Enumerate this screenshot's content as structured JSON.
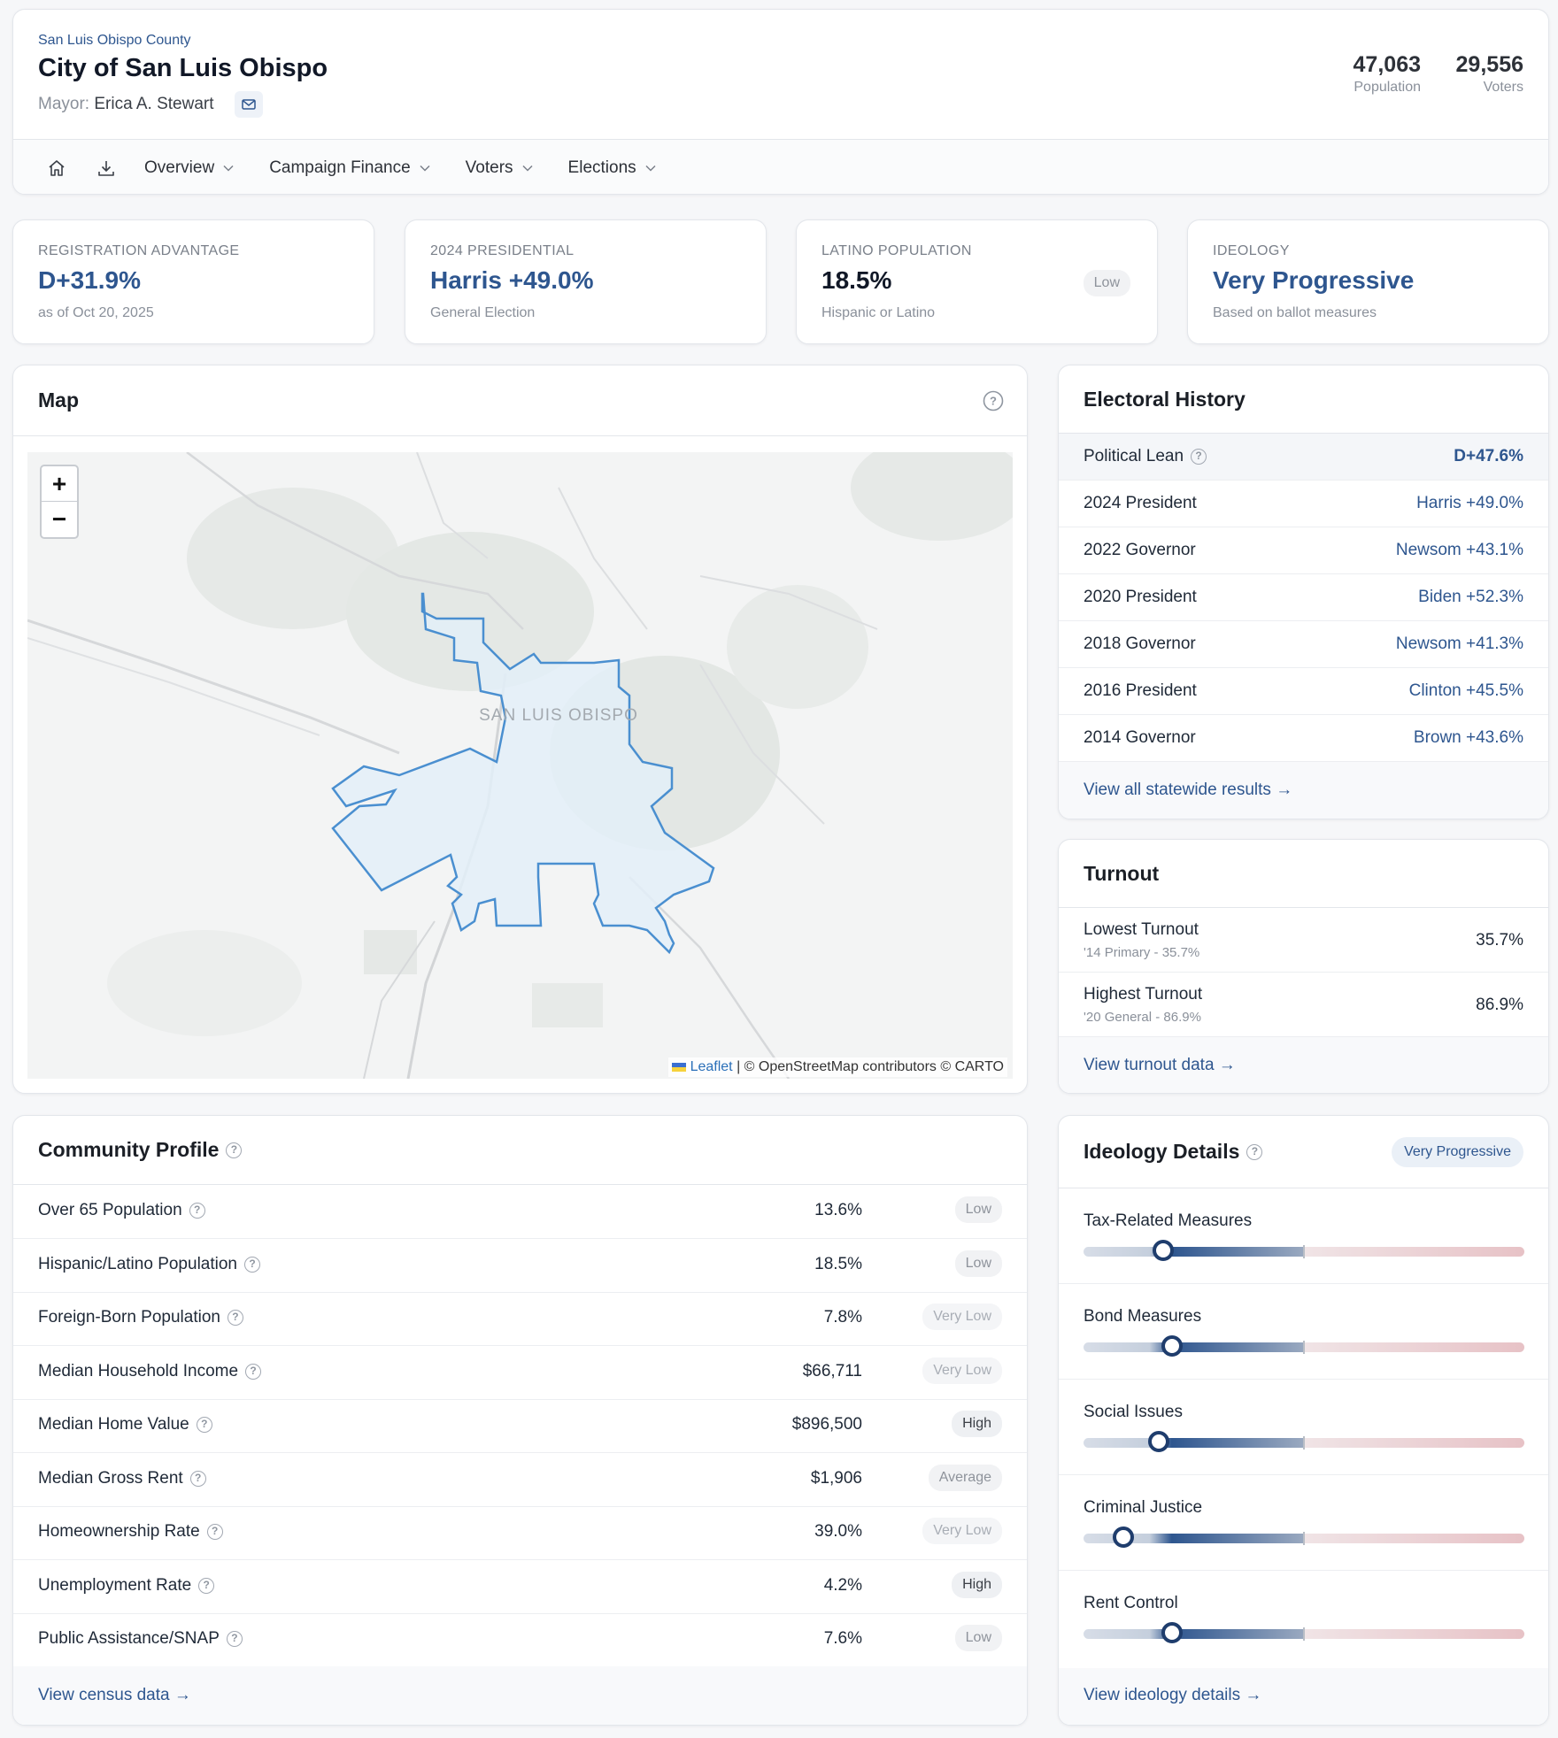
{
  "header": {
    "county": "San Luis Obispo County",
    "city_title": "City of San Luis Obispo",
    "mayor_label": "Mayor:",
    "mayor_name": "Erica A. Stewart",
    "population": "47,063",
    "population_label": "Population",
    "voters": "29,556",
    "voters_label": "Voters"
  },
  "nav": {
    "items": [
      "Overview",
      "Campaign Finance",
      "Voters",
      "Elections"
    ]
  },
  "stats": [
    {
      "label": "REGISTRATION ADVANTAGE",
      "value": "D+31.9%",
      "sub": "as of Oct 20, 2025"
    },
    {
      "label": "2024 PRESIDENTIAL",
      "value": "Harris +49.0%",
      "sub": "General Election"
    },
    {
      "label": "LATINO POPULATION",
      "value": "18.5%",
      "sub": "Hispanic or Latino",
      "badge": "Low"
    },
    {
      "label": "IDEOLOGY",
      "value": "Very Progressive",
      "sub": "Based on ballot measures"
    }
  ],
  "map": {
    "title": "Map",
    "city_label": "SAN LUIS OBISPO",
    "zoom_in": "+",
    "zoom_out": "−",
    "attribution_leaflet": "Leaflet",
    "attribution_rest": "| © OpenStreetMap contributors © CARTO"
  },
  "electoral": {
    "title": "Electoral History",
    "lean_label": "Political Lean",
    "lean_value": "D+47.6%",
    "rows": [
      {
        "label": "2024 President",
        "value": "Harris +49.0%"
      },
      {
        "label": "2022 Governor",
        "value": "Newsom +43.1%"
      },
      {
        "label": "2020 President",
        "value": "Biden +52.3%"
      },
      {
        "label": "2018 Governor",
        "value": "Newsom +41.3%"
      },
      {
        "label": "2016 President",
        "value": "Clinton +45.5%"
      },
      {
        "label": "2014 Governor",
        "value": "Brown +43.6%"
      }
    ],
    "link": "View all statewide results →"
  },
  "turnout": {
    "title": "Turnout",
    "rows": [
      {
        "label": "Lowest Turnout",
        "sub": "'14 Primary - 35.7%",
        "value": "35.7%"
      },
      {
        "label": "Highest Turnout",
        "sub": "'20 General - 86.9%",
        "value": "86.9%"
      }
    ],
    "link": "View turnout data →"
  },
  "community": {
    "title": "Community Profile",
    "rows": [
      {
        "label": "Over 65 Population",
        "value": "13.6%",
        "badge": "Low",
        "tone": "normal"
      },
      {
        "label": "Hispanic/Latino Population",
        "value": "18.5%",
        "badge": "Low",
        "tone": "normal"
      },
      {
        "label": "Foreign-Born Population",
        "value": "7.8%",
        "badge": "Very Low",
        "tone": "faint"
      },
      {
        "label": "Median Household Income",
        "value": "$66,711",
        "badge": "Very Low",
        "tone": "faint"
      },
      {
        "label": "Median Home Value",
        "value": "$896,500",
        "badge": "High",
        "tone": "strong"
      },
      {
        "label": "Median Gross Rent",
        "value": "$1,906",
        "badge": "Average",
        "tone": "normal"
      },
      {
        "label": "Homeownership Rate",
        "value": "39.0%",
        "badge": "Very Low",
        "tone": "faint"
      },
      {
        "label": "Unemployment Rate",
        "value": "4.2%",
        "badge": "High",
        "tone": "strong"
      },
      {
        "label": "Public Assistance/SNAP",
        "value": "7.6%",
        "badge": "Low",
        "tone": "normal"
      }
    ],
    "link": "View census data →"
  },
  "ideology": {
    "title": "Ideology Details",
    "badge": "Very Progressive",
    "measures": [
      {
        "label": "Tax-Related Measures",
        "position": 0.18
      },
      {
        "label": "Bond Measures",
        "position": 0.2
      },
      {
        "label": "Social Issues",
        "position": 0.17
      },
      {
        "label": "Criminal Justice",
        "position": 0.09
      },
      {
        "label": "Rent Control",
        "position": 0.2
      }
    ],
    "link": "View ideology details →"
  },
  "colors": {
    "accent": "#2e568f",
    "map_fill": "#e3eef8",
    "map_stroke": "#4a8fd0"
  }
}
